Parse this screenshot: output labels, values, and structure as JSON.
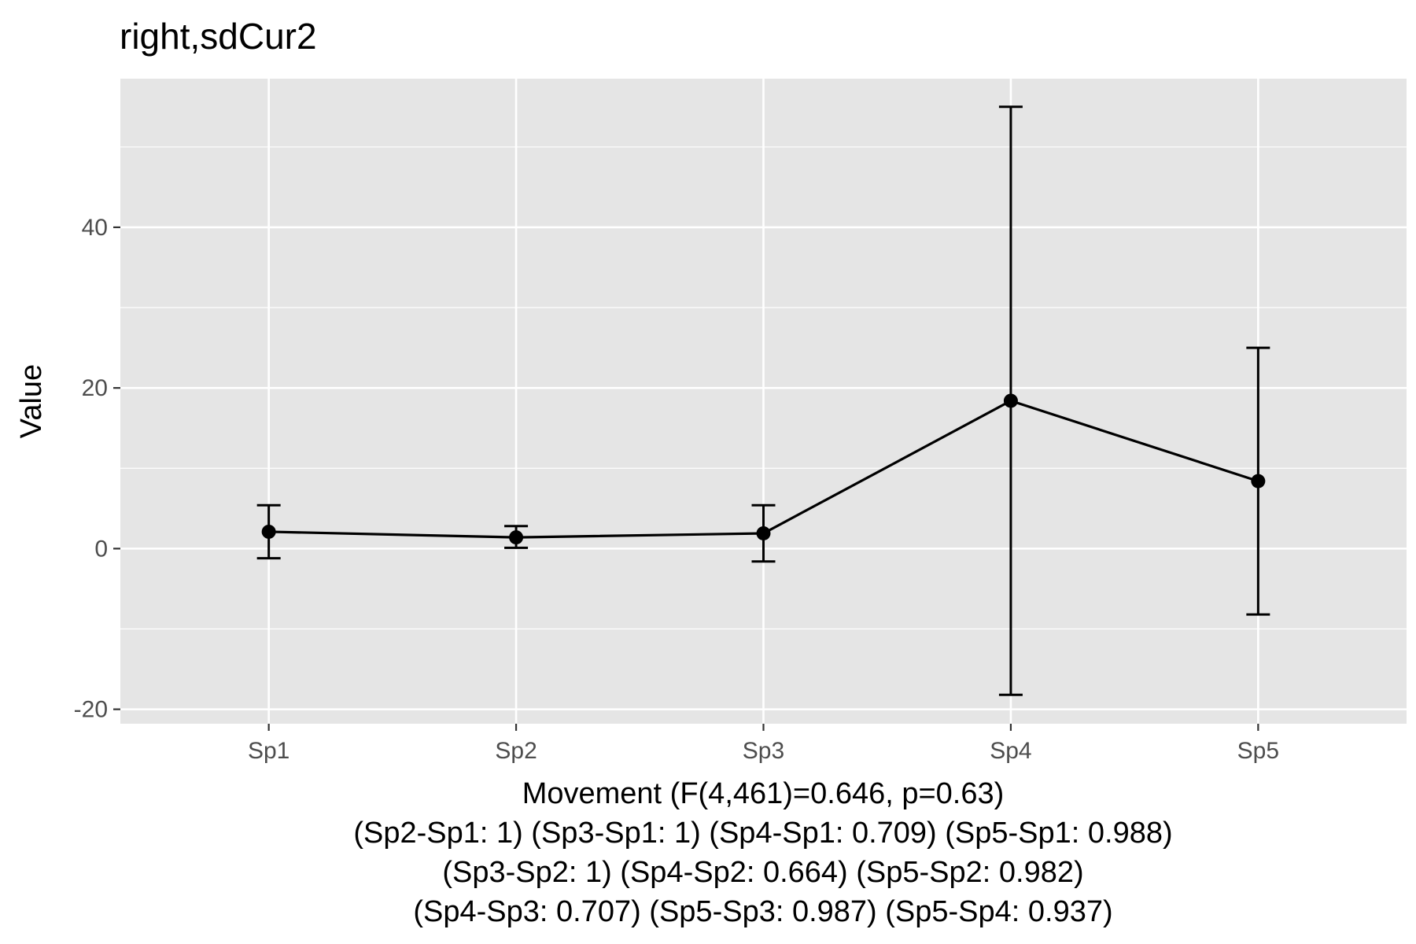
{
  "chart_data": {
    "type": "line",
    "title": "right,sdCur2",
    "ylabel": "Value",
    "xlabel_lines": [
      "Movement (F(4,461)=0.646, p=0.63)",
      "(Sp2-Sp1: 1) (Sp3-Sp1: 1) (Sp4-Sp1: 0.709) (Sp5-Sp1: 0.988)",
      "(Sp3-Sp2: 1) (Sp4-Sp2: 0.664) (Sp5-Sp2: 0.982)",
      "(Sp4-Sp3: 0.707) (Sp5-Sp3: 0.987) (Sp5-Sp4: 0.937)"
    ],
    "categories": [
      "Sp1",
      "Sp2",
      "Sp3",
      "Sp4",
      "Sp5"
    ],
    "series": [
      {
        "values": [
          2.1,
          1.4,
          1.9,
          18.4,
          8.4
        ],
        "error_lower": [
          -1.2,
          0.1,
          -1.6,
          -18.2,
          -8.2
        ],
        "error_upper": [
          5.4,
          2.8,
          5.4,
          55.0,
          25.0
        ]
      }
    ],
    "ylim": [
      -21.8,
      58.5
    ],
    "yticks": [
      -20,
      0,
      20,
      40
    ],
    "ytick_labels": [
      "-20",
      "0",
      "20",
      "40"
    ],
    "grid": true,
    "colors": {
      "panel": "#e5e5e5",
      "grid": "#ffffff",
      "line": "#000000"
    }
  }
}
